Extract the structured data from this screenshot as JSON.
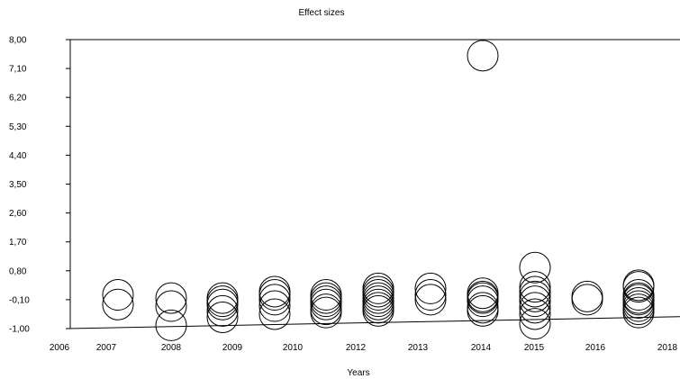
{
  "chart_data": {
    "type": "scatter",
    "title": "Effect sizes",
    "xlabel": "Years",
    "ylabel": "",
    "x_ticks": [
      2006,
      2007,
      2008,
      2009,
      2010,
      2012,
      2013,
      2014,
      2015,
      2016,
      2018
    ],
    "x_tick_labels": [
      "2006",
      "2007",
      "2008",
      "2009",
      "2010",
      "2012",
      "2013",
      "2014",
      "2015",
      "2016",
      "2018"
    ],
    "y_ticks": [
      8.0,
      7.1,
      6.2,
      5.3,
      4.4,
      3.5,
      2.6,
      1.7,
      0.8,
      -0.1,
      -1.0
    ],
    "y_tick_labels": [
      "8,00",
      "7,10",
      "6,20",
      "5,30",
      "4,40",
      "3,50",
      "2,60",
      "1,70",
      "0,80",
      "-0,10",
      "-1,00"
    ],
    "ylim": [
      -1.0,
      8.0
    ],
    "grid": false,
    "legend": "none",
    "points": [
      {
        "x": 2007,
        "y": 0.05
      },
      {
        "x": 2007,
        "y": -0.25
      },
      {
        "x": 2008,
        "y": -0.05
      },
      {
        "x": 2008,
        "y": -0.3
      },
      {
        "x": 2008,
        "y": -0.9
      },
      {
        "x": 2009,
        "y": -0.05
      },
      {
        "x": 2009,
        "y": -0.15
      },
      {
        "x": 2009,
        "y": -0.25
      },
      {
        "x": 2009,
        "y": -0.45
      },
      {
        "x": 2009,
        "y": -0.65
      },
      {
        "x": 2010,
        "y": 0.15
      },
      {
        "x": 2010,
        "y": 0.05
      },
      {
        "x": 2010,
        "y": -0.1
      },
      {
        "x": 2010,
        "y": -0.3
      },
      {
        "x": 2010,
        "y": -0.55
      },
      {
        "x": 2011,
        "y": 0.05
      },
      {
        "x": 2011,
        "y": -0.05
      },
      {
        "x": 2011,
        "y": -0.15
      },
      {
        "x": 2011,
        "y": -0.25
      },
      {
        "x": 2011,
        "y": -0.4
      },
      {
        "x": 2011,
        "y": -0.5
      },
      {
        "x": 2012,
        "y": 0.25
      },
      {
        "x": 2012,
        "y": 0.15
      },
      {
        "x": 2012,
        "y": 0.05
      },
      {
        "x": 2012,
        "y": -0.05
      },
      {
        "x": 2012,
        "y": -0.15
      },
      {
        "x": 2012,
        "y": -0.25
      },
      {
        "x": 2012,
        "y": -0.35
      },
      {
        "x": 2012,
        "y": -0.45
      },
      {
        "x": 2013,
        "y": 0.25
      },
      {
        "x": 2013,
        "y": 0.05
      },
      {
        "x": 2013,
        "y": -0.1
      },
      {
        "x": 2014,
        "y": 7.5
      },
      {
        "x": 2014,
        "y": 0.1
      },
      {
        "x": 2014,
        "y": 0.0
      },
      {
        "x": 2014,
        "y": -0.05
      },
      {
        "x": 2014,
        "y": -0.15
      },
      {
        "x": 2014,
        "y": -0.35
      },
      {
        "x": 2014,
        "y": -0.45
      },
      {
        "x": 2015,
        "y": 0.9
      },
      {
        "x": 2015,
        "y": 0.3
      },
      {
        "x": 2015,
        "y": 0.15
      },
      {
        "x": 2015,
        "y": 0.0
      },
      {
        "x": 2015,
        "y": -0.15
      },
      {
        "x": 2015,
        "y": -0.35
      },
      {
        "x": 2015,
        "y": -0.55
      },
      {
        "x": 2015,
        "y": -0.85
      },
      {
        "x": 2016,
        "y": 0.0
      },
      {
        "x": 2016,
        "y": -0.1
      },
      {
        "x": 2017,
        "y": 0.35
      },
      {
        "x": 2017,
        "y": 0.3
      },
      {
        "x": 2017,
        "y": 0.05
      },
      {
        "x": 2017,
        "y": -0.05
      },
      {
        "x": 2017,
        "y": -0.1
      },
      {
        "x": 2017,
        "y": -0.2
      },
      {
        "x": 2017,
        "y": -0.3
      },
      {
        "x": 2017,
        "y": -0.4
      },
      {
        "x": 2017,
        "y": -0.5
      }
    ],
    "trend_line": {
      "x": [
        2006,
        2018
      ],
      "y": [
        -1.0,
        -0.63
      ]
    }
  }
}
